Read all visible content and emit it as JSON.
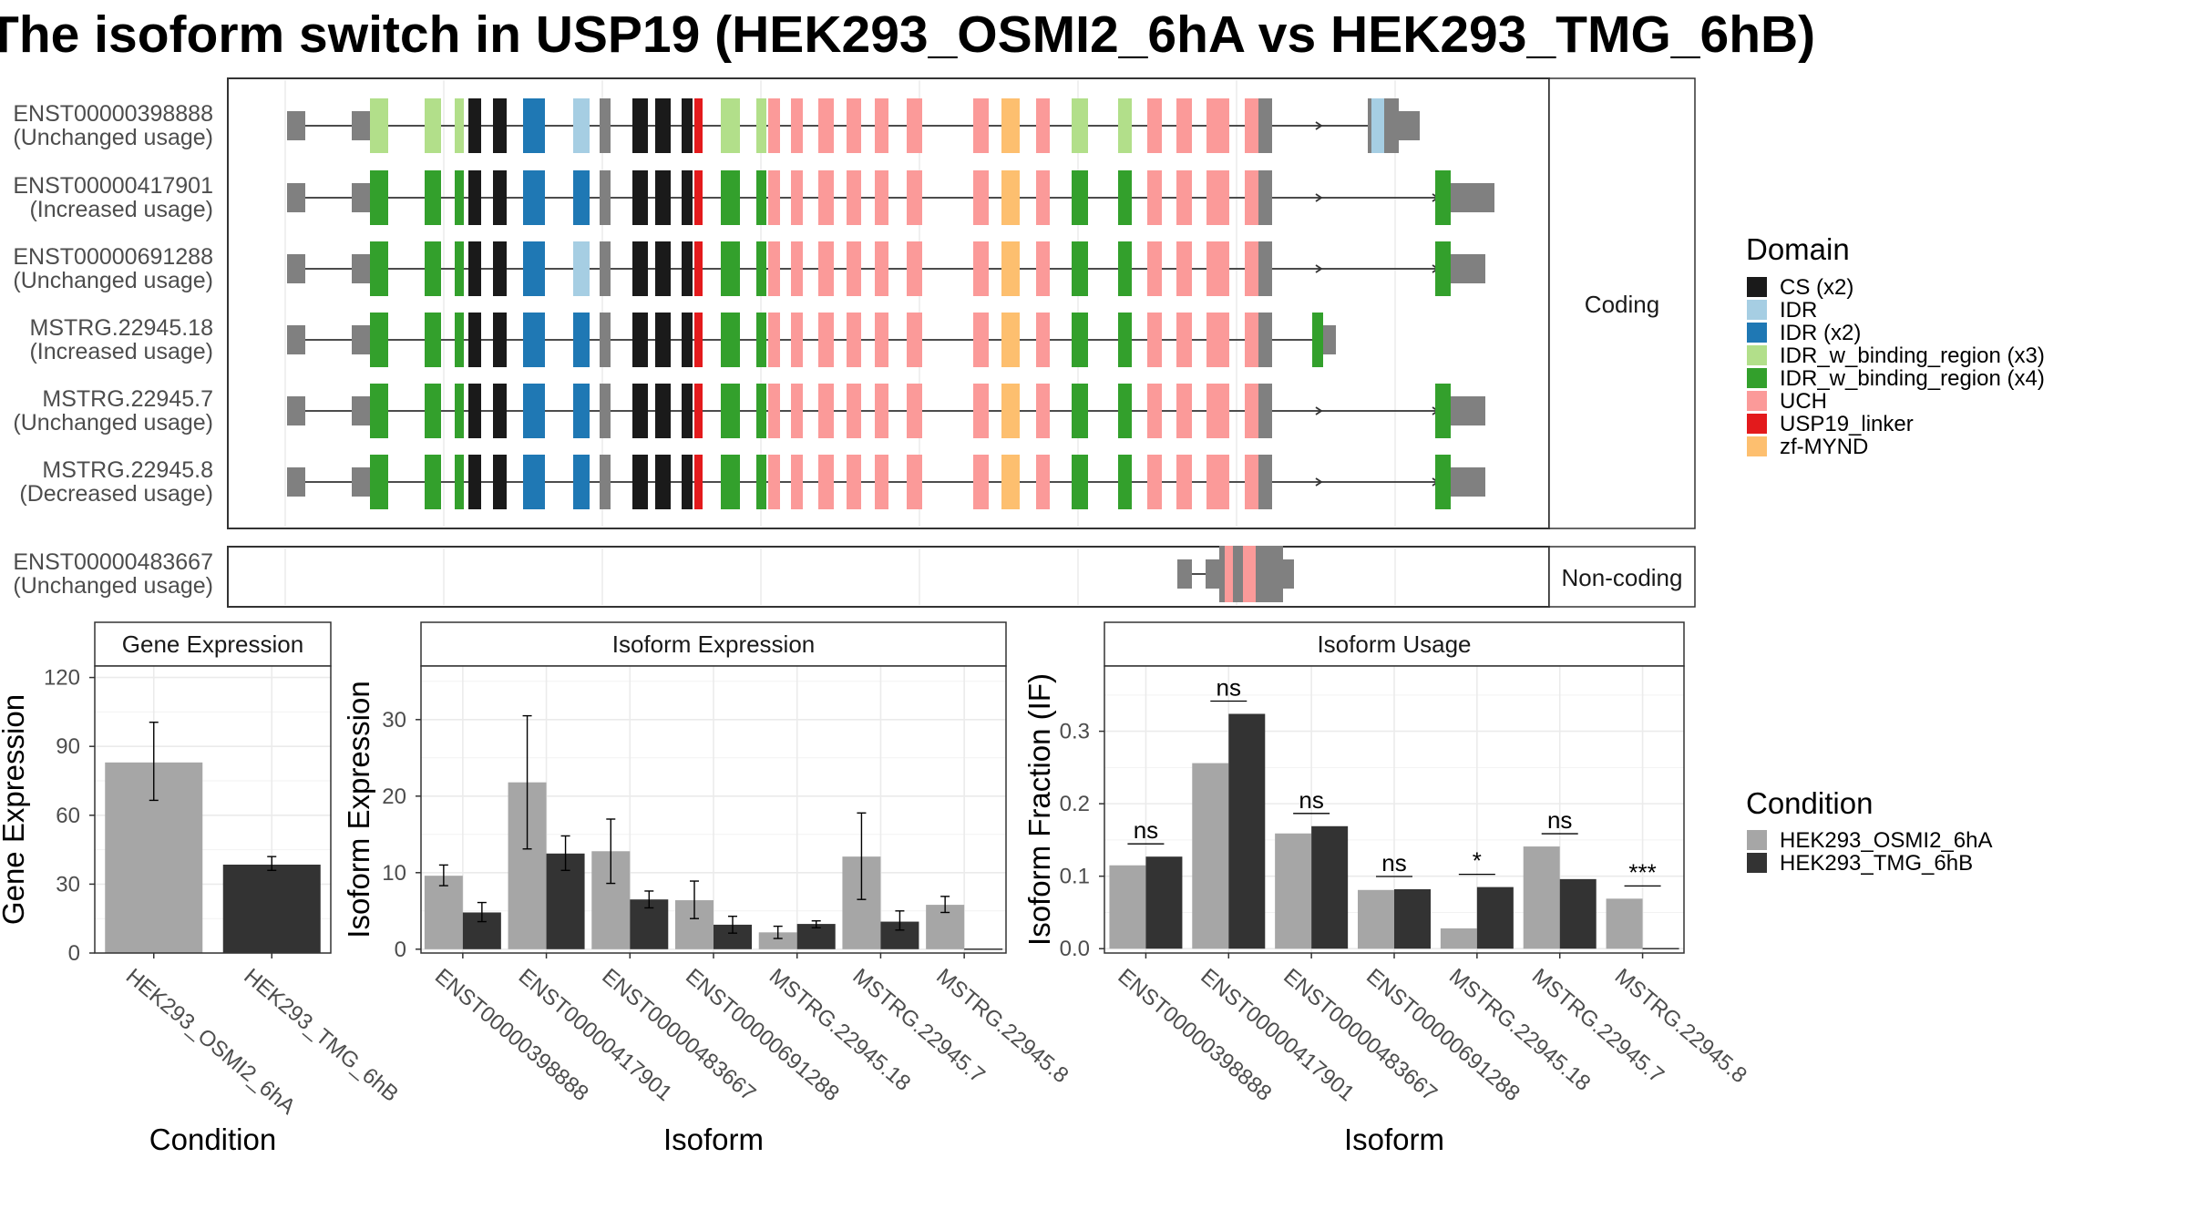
{
  "title": "The isoform switch in USP19 (HEK293_OSMI2_6hA vs HEK293_TMG_6hB)",
  "colors": {
    "condition": {
      "HEK293_OSMI2_6hA": "#a6a6a6",
      "HEK293_TMG_6hB": "#333333"
    },
    "domains": {
      "CS (x2)": "#1a1a1a",
      "IDR": "#a6cee3",
      "IDR (x2)": "#1f78b4",
      "IDR_w_binding_region (x3)": "#b2df8a",
      "IDR_w_binding_region (x4)": "#33a02c",
      "UCH": "#fb9a99",
      "USP19_linker": "#e31a1c",
      "zf-MYND": "#fdbf6f"
    },
    "intron": "#333333",
    "utr": "#808080"
  },
  "structure": {
    "coding_label": "Coding",
    "noncoding_label": "Non-coding",
    "coding_transcripts": [
      {
        "id": "ENST00000398888",
        "usage": "(Unchanged usage)",
        "idr_color": "IDR_w_binding_region (x3)",
        "blue_variant": "IDR",
        "tail": "short-blue"
      },
      {
        "id": "ENST00000417901",
        "usage": "(Increased usage)",
        "idr_color": "IDR_w_binding_region (x4)",
        "blue_variant": "IDR (x2)",
        "tail": "long"
      },
      {
        "id": "ENST00000691288",
        "usage": "(Unchanged usage)",
        "idr_color": "IDR_w_binding_region (x4)",
        "blue_variant": "IDR",
        "tail": "medium"
      },
      {
        "id": "MSTRG.22945.18",
        "usage": "(Increased usage)",
        "idr_color": "IDR_w_binding_region (x4)",
        "blue_variant": "IDR (x2)",
        "tail": "short"
      },
      {
        "id": "MSTRG.22945.7",
        "usage": "(Unchanged usage)",
        "idr_color": "IDR_w_binding_region (x4)",
        "blue_variant": "IDR (x2)",
        "tail": "medium"
      },
      {
        "id": "MSTRG.22945.8",
        "usage": "(Decreased usage)",
        "idr_color": "IDR_w_binding_region (x4)",
        "blue_variant": "IDR (x2)",
        "tail": "medium"
      }
    ],
    "noncoding_transcripts": [
      {
        "id": "ENST00000483667",
        "usage": "(Unchanged usage)"
      }
    ]
  },
  "legends": {
    "domain_title": "Domain",
    "domain_items": [
      "CS (x2)",
      "IDR",
      "IDR (x2)",
      "IDR_w_binding_region (x3)",
      "IDR_w_binding_region (x4)",
      "UCH",
      "USP19_linker",
      "zf-MYND"
    ],
    "condition_title": "Condition",
    "condition_items": [
      "HEK293_OSMI2_6hA",
      "HEK293_TMG_6hB"
    ]
  },
  "chart_data": [
    {
      "type": "bar",
      "title": "Gene Expression",
      "xlabel": "Condition",
      "ylabel": "Gene Expression",
      "ylim": [
        0,
        125
      ],
      "yticks": [
        0,
        30,
        60,
        90,
        120
      ],
      "categories": [
        "HEK293_OSMI2_6hA",
        "HEK293_TMG_6hB"
      ],
      "values": [
        83,
        38.5
      ],
      "error": [
        [
          66.5,
          100.5
        ],
        [
          36,
          42
        ]
      ]
    },
    {
      "type": "bar",
      "title": "Isoform Expression",
      "xlabel": "Isoform",
      "ylabel": "Isoform Expression",
      "ylim": [
        -0.5,
        37
      ],
      "yticks": [
        0,
        10,
        20,
        30
      ],
      "categories": [
        "ENST00000398888",
        "ENST00000417901",
        "ENST00000483667",
        "ENST00000691288",
        "MSTRG.22945.18",
        "MSTRG.22945.7",
        "MSTRG.22945.8"
      ],
      "series": [
        {
          "name": "HEK293_OSMI2_6hA",
          "values": [
            9.6,
            21.8,
            12.8,
            6.4,
            2.2,
            12.1,
            5.8
          ],
          "error": [
            [
              8.3,
              11
            ],
            [
              13.1,
              30.5
            ],
            [
              8.6,
              17
            ],
            [
              4,
              8.9
            ],
            [
              1.4,
              3
            ],
            [
              6.5,
              17.8
            ],
            [
              4.8,
              6.9
            ]
          ]
        },
        {
          "name": "HEK293_TMG_6hB",
          "values": [
            4.8,
            12.5,
            6.5,
            3.2,
            3.3,
            3.6,
            0
          ],
          "error": [
            [
              3.6,
              6.1
            ],
            [
              10.3,
              14.8
            ],
            [
              5.4,
              7.6
            ],
            [
              2.1,
              4.3
            ],
            [
              2.8,
              3.7
            ],
            [
              2.5,
              5
            ],
            null
          ]
        }
      ]
    },
    {
      "type": "bar",
      "title": "Isoform Usage",
      "xlabel": "Isoform",
      "ylabel": "Isoform Fraction (IF)",
      "ylim": [
        -0.006,
        0.39
      ],
      "yticks": [
        0.0,
        0.1,
        0.2,
        0.3
      ],
      "ytick_labels": [
        "0.0",
        "0.1",
        "0.2",
        "0.3"
      ],
      "categories": [
        "ENST00000398888",
        "ENST00000417901",
        "ENST00000483667",
        "ENST00000691288",
        "MSTRG.22945.18",
        "MSTRG.22945.7",
        "MSTRG.22945.8"
      ],
      "series": [
        {
          "name": "HEK293_OSMI2_6hA",
          "values": [
            0.115,
            0.256,
            0.159,
            0.081,
            0.028,
            0.141,
            0.069
          ]
        },
        {
          "name": "HEK293_TMG_6hB",
          "values": [
            0.127,
            0.324,
            0.169,
            0.082,
            0.085,
            0.096,
            0
          ]
        }
      ],
      "significance": [
        "ns",
        "ns",
        "ns",
        "ns",
        "*",
        "ns",
        "***"
      ]
    }
  ]
}
